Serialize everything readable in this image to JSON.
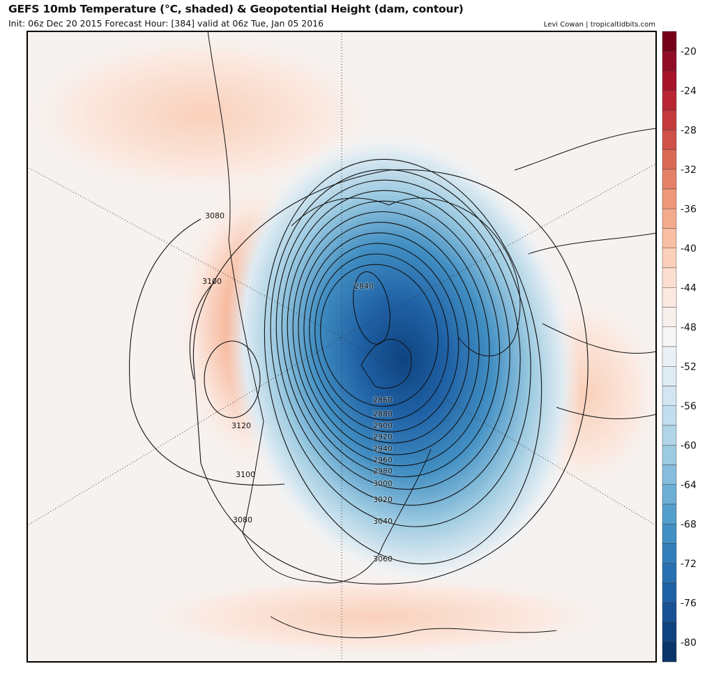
{
  "header": {
    "title": "GEFS 10mb Temperature (°C, shaded) & Geopotential Height (dam, contour)",
    "subtitle": "Init: 06z Dec 20 2015   Forecast Hour: [384]   valid at 06z Tue, Jan 05 2016",
    "credit": "Levi Cowan | tropicaltidbits.com"
  },
  "colorbar": {
    "units": "°C",
    "min": -82,
    "max": -18,
    "step": 2,
    "ticks": [
      "-20",
      "-24",
      "-28",
      "-32",
      "-36",
      "-40",
      "-44",
      "-48",
      "-52",
      "-56",
      "-60",
      "-64",
      "-68",
      "-72",
      "-76",
      "-80"
    ],
    "colors": [
      "#740019",
      "#910d27",
      "#a8142c",
      "#b92532",
      "#c43a3c",
      "#cf5148",
      "#db6a55",
      "#e58167",
      "#ee9879",
      "#f3ab8d",
      "#f7bea4",
      "#fad0ba",
      "#fcdfd0",
      "#fbe9e1",
      "#f6efec",
      "#f6f6f6",
      "#ebf0f4",
      "#dfebf2",
      "#d2e5f0",
      "#c2dded",
      "#b0d4e8",
      "#9ccae1",
      "#86bcdc",
      "#6daed5",
      "#559fcc",
      "#428fc3",
      "#337fbb",
      "#2870b1",
      "#1f61a5",
      "#185294",
      "#0f437f",
      "#083469"
    ]
  },
  "map": {
    "vortex_contours": [
      "2840",
      "2860",
      "2880",
      "2900",
      "2920",
      "2940",
      "2960",
      "2980",
      "3000",
      "3020",
      "3040",
      "3060"
    ],
    "outer_labels": {
      "c3080_a": "3080",
      "c3080_b": "3080",
      "c3100_a": "3100",
      "c3100_b": "3100",
      "c3120": "3120"
    }
  }
}
